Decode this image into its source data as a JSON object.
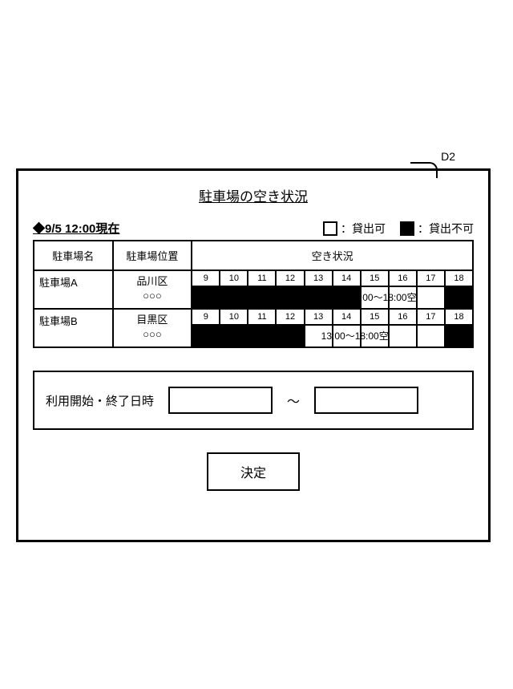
{
  "callout_label": "D2",
  "title": "駐車場の空き状況",
  "timestamp_prefix": "◆",
  "timestamp": "9/5  12:00現在",
  "legend": {
    "available": "：貸出可",
    "unavailable": "：貸出不可",
    "available_color": "#ffffff",
    "unavailable_color": "#000000"
  },
  "table": {
    "headers": [
      "駐車場名",
      "駐車場位置",
      "空き状況"
    ],
    "col_widths_pct": [
      18,
      18,
      64
    ],
    "hours": [
      "9",
      "10",
      "11",
      "12",
      "13",
      "14",
      "15",
      "16",
      "17",
      "18"
    ],
    "rows": [
      {
        "name": "駐車場A",
        "location_line1": "品川区",
        "location_line2": "○○○",
        "busy": [
          true,
          true,
          true,
          true,
          true,
          true,
          false,
          false,
          false,
          true
        ],
        "free_label": "15:00～18:00空",
        "free_label_left_pct": 56
      },
      {
        "name": "駐車場B",
        "location_line1": "目黒区",
        "location_line2": "○○○",
        "busy": [
          true,
          true,
          true,
          true,
          false,
          false,
          false,
          false,
          false,
          true
        ],
        "free_label": "13:00～18:00空",
        "free_label_left_pct": 46
      }
    ]
  },
  "datetime": {
    "label": "利用開始・終了日時",
    "separator": "～"
  },
  "submit_label": "決定",
  "colors": {
    "border": "#000000",
    "background": "#ffffff",
    "text": "#000000"
  }
}
